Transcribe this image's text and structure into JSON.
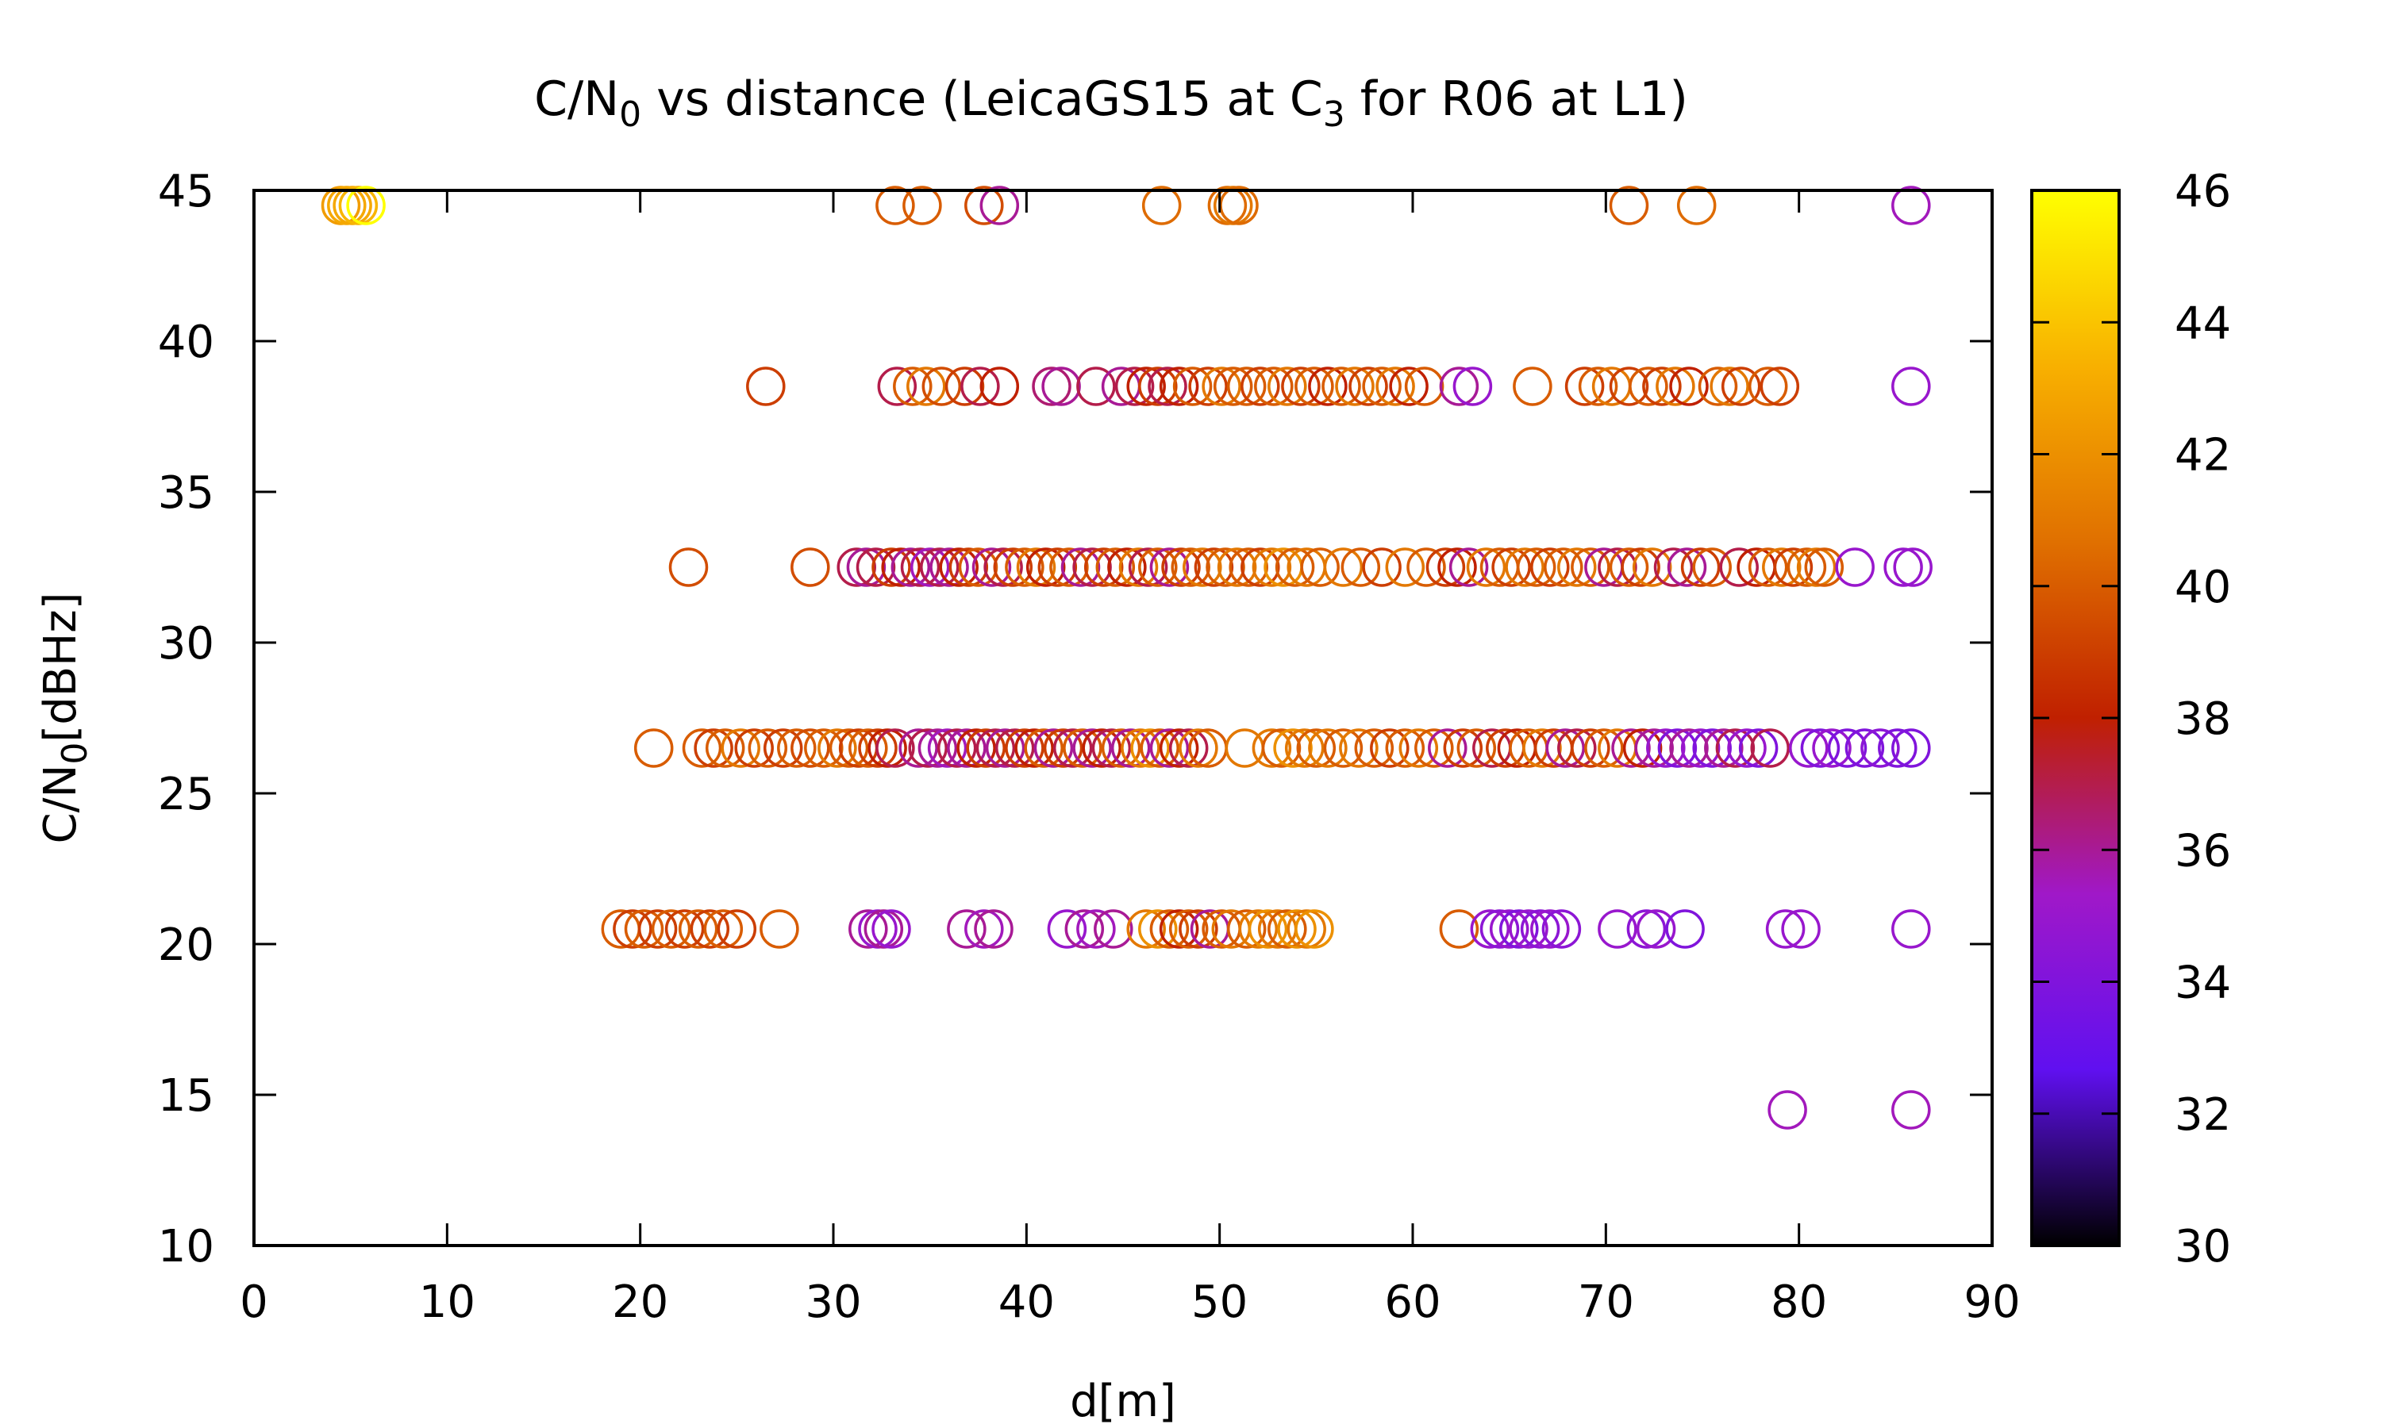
{
  "chart_data": {
    "type": "scatter",
    "title_parts": {
      "prefix": "C/N",
      "sub1": "0",
      "middle": " vs distance (LeicaGS15 at C",
      "sub2": "3",
      "suffix": " for R06 at L1)"
    },
    "xlabel": "d[m]",
    "ylabel_parts": {
      "prefix": "C/N",
      "sub": "0",
      "suffix": "[dBHz]"
    },
    "xlim": [
      0,
      90
    ],
    "ylim": [
      10,
      45
    ],
    "xticks": [
      0,
      10,
      20,
      30,
      40,
      50,
      60,
      70,
      80,
      90
    ],
    "yticks": [
      10,
      15,
      20,
      25,
      30,
      35,
      40,
      45
    ],
    "colorbar": {
      "range": [
        30,
        46
      ],
      "ticks": [
        30,
        32,
        34,
        36,
        38,
        40,
        42,
        44,
        46
      ],
      "palette": [
        "#000000",
        "#6010f0",
        "#a018c8",
        "#c02000",
        "#e07000",
        "#f8b000",
        "#ffff00"
      ]
    },
    "marker": "open-circle",
    "point_rows": [
      {
        "y": 44.5,
        "points": [
          [
            4.5,
            42.5
          ],
          [
            4.8,
            43
          ],
          [
            5.1,
            43
          ],
          [
            5.4,
            43.5
          ],
          [
            5.8,
            46
          ],
          [
            33.2,
            40
          ],
          [
            34.6,
            40
          ],
          [
            37.8,
            39.5
          ],
          [
            38.6,
            36
          ],
          [
            47,
            40.5
          ],
          [
            50.4,
            40.5
          ],
          [
            50.7,
            41
          ],
          [
            51,
            40.5
          ],
          [
            71.2,
            40
          ],
          [
            74.7,
            40.5
          ],
          [
            85.8,
            35.5
          ]
        ]
      },
      {
        "y": 38.5,
        "points": [
          [
            26.5,
            39
          ],
          [
            33.3,
            37
          ],
          [
            34.1,
            40
          ],
          [
            34.8,
            41
          ],
          [
            35.6,
            39.5
          ],
          [
            36.8,
            39
          ],
          [
            37.6,
            37
          ],
          [
            38.6,
            38
          ],
          [
            41.3,
            36.5
          ],
          [
            41.8,
            36
          ],
          [
            43.6,
            37
          ],
          [
            44.9,
            36
          ],
          [
            45.6,
            37
          ],
          [
            46.2,
            38
          ],
          [
            46.8,
            39
          ],
          [
            47.3,
            37
          ],
          [
            47.9,
            38
          ],
          [
            48.6,
            40
          ],
          [
            49.4,
            39
          ],
          [
            50.1,
            41
          ],
          [
            50.7,
            40
          ],
          [
            51.4,
            40
          ],
          [
            52.1,
            39
          ],
          [
            52.8,
            40
          ],
          [
            53.5,
            41
          ],
          [
            54.2,
            39
          ],
          [
            54.9,
            40
          ],
          [
            55.6,
            38
          ],
          [
            56.3,
            40
          ],
          [
            57,
            41
          ],
          [
            57.7,
            39
          ],
          [
            58.4,
            40
          ],
          [
            59.1,
            41
          ],
          [
            59.8,
            38
          ],
          [
            60.6,
            40
          ],
          [
            62.4,
            36
          ],
          [
            63.1,
            35
          ],
          [
            66.2,
            40
          ],
          [
            68.9,
            39
          ],
          [
            69.6,
            40
          ],
          [
            70.3,
            41
          ],
          [
            71.2,
            39
          ],
          [
            72.2,
            40
          ],
          [
            72.9,
            39
          ],
          [
            73.6,
            41
          ],
          [
            74.3,
            38
          ],
          [
            75.8,
            40
          ],
          [
            76.4,
            41
          ],
          [
            77,
            39
          ],
          [
            78.4,
            40
          ],
          [
            79,
            39
          ],
          [
            85.8,
            35
          ]
        ]
      },
      {
        "y": 32.5,
        "points": [
          [
            22.5,
            39.5
          ],
          [
            28.8,
            39.5
          ],
          [
            31.2,
            37
          ],
          [
            31.7,
            36
          ],
          [
            32.2,
            37
          ],
          [
            33,
            39
          ],
          [
            33.5,
            38
          ],
          [
            34,
            36
          ],
          [
            34.5,
            37
          ],
          [
            35,
            35.5
          ],
          [
            35.5,
            37
          ],
          [
            36,
            36
          ],
          [
            36.5,
            38
          ],
          [
            37,
            39
          ],
          [
            37.5,
            40
          ],
          [
            38.2,
            36
          ],
          [
            38.8,
            37
          ],
          [
            39.3,
            39
          ],
          [
            39.9,
            40
          ],
          [
            40.5,
            41
          ],
          [
            41,
            38
          ],
          [
            41.6,
            39
          ],
          [
            42.2,
            40
          ],
          [
            42.8,
            36
          ],
          [
            43.4,
            37
          ],
          [
            44,
            39
          ],
          [
            44.6,
            40
          ],
          [
            45.2,
            38
          ],
          [
            45.8,
            41
          ],
          [
            46.3,
            37
          ],
          [
            46.8,
            40
          ],
          [
            47.4,
            36
          ],
          [
            48,
            39
          ],
          [
            48.5,
            40
          ],
          [
            49.1,
            41
          ],
          [
            49.7,
            39
          ],
          [
            50.3,
            40
          ],
          [
            50.9,
            41
          ],
          [
            51.5,
            40
          ],
          [
            52.1,
            39
          ],
          [
            52.7,
            41
          ],
          [
            53.3,
            42
          ],
          [
            53.9,
            40
          ],
          [
            54.5,
            41
          ],
          [
            55.2,
            40
          ],
          [
            56.4,
            41
          ],
          [
            57.3,
            40
          ],
          [
            58.4,
            39
          ],
          [
            59.6,
            41
          ],
          [
            60.7,
            40
          ],
          [
            61.7,
            39
          ],
          [
            62.3,
            38
          ],
          [
            62.9,
            36
          ],
          [
            63.8,
            41
          ],
          [
            64.5,
            40
          ],
          [
            65.1,
            39
          ],
          [
            65.8,
            41
          ],
          [
            66.4,
            40
          ],
          [
            67.1,
            39
          ],
          [
            67.8,
            40
          ],
          [
            68.5,
            41
          ],
          [
            69.2,
            40
          ],
          [
            69.9,
            36
          ],
          [
            70.6,
            37
          ],
          [
            71.2,
            40
          ],
          [
            71.8,
            39
          ],
          [
            72.4,
            41
          ],
          [
            73.5,
            37
          ],
          [
            74.2,
            36
          ],
          [
            74.9,
            39
          ],
          [
            75.5,
            40
          ],
          [
            76.9,
            37
          ],
          [
            77.8,
            38
          ],
          [
            78.4,
            40
          ],
          [
            79.1,
            41
          ],
          [
            79.7,
            39
          ],
          [
            80.4,
            40
          ],
          [
            80.9,
            41
          ],
          [
            81.3,
            40
          ],
          [
            82.9,
            35
          ],
          [
            85.4,
            35
          ],
          [
            85.9,
            35
          ]
        ]
      },
      {
        "y": 26.5,
        "points": [
          [
            20.7,
            40
          ],
          [
            23.2,
            40
          ],
          [
            23.8,
            39
          ],
          [
            24.4,
            40
          ],
          [
            25.2,
            41
          ],
          [
            25.9,
            39
          ],
          [
            26.6,
            40
          ],
          [
            27.4,
            39
          ],
          [
            28.1,
            40
          ],
          [
            28.8,
            39.5
          ],
          [
            29.5,
            40
          ],
          [
            30.2,
            41
          ],
          [
            30.8,
            40
          ],
          [
            31.3,
            39
          ],
          [
            31.8,
            40
          ],
          [
            32.3,
            39
          ],
          [
            32.8,
            38
          ],
          [
            33.2,
            37
          ],
          [
            34.4,
            36
          ],
          [
            34.9,
            37
          ],
          [
            35.4,
            36
          ],
          [
            35.9,
            35.5
          ],
          [
            36.4,
            37
          ],
          [
            36.9,
            36
          ],
          [
            37.4,
            38
          ],
          [
            37.9,
            39
          ],
          [
            38.4,
            37
          ],
          [
            38.9,
            36
          ],
          [
            39.4,
            37
          ],
          [
            39.9,
            39
          ],
          [
            40.4,
            38
          ],
          [
            40.9,
            40
          ],
          [
            41.4,
            36
          ],
          [
            41.9,
            39
          ],
          [
            42.4,
            37
          ],
          [
            42.9,
            40
          ],
          [
            43.4,
            36
          ],
          [
            43.9,
            38
          ],
          [
            44.4,
            37
          ],
          [
            44.9,
            40
          ],
          [
            45.4,
            36
          ],
          [
            45.9,
            41
          ],
          [
            46.4,
            42
          ],
          [
            46.9,
            40
          ],
          [
            47.4,
            36
          ],
          [
            47.9,
            38
          ],
          [
            48.4,
            37
          ],
          [
            48.9,
            41
          ],
          [
            49.4,
            40
          ],
          [
            51.3,
            41
          ],
          [
            52.7,
            41
          ],
          [
            53.2,
            40
          ],
          [
            53.8,
            42
          ],
          [
            54.4,
            41
          ],
          [
            55,
            40
          ],
          [
            55.6,
            41
          ],
          [
            56.4,
            40
          ],
          [
            57.2,
            41
          ],
          [
            58,
            40
          ],
          [
            58.8,
            39
          ],
          [
            59.6,
            40
          ],
          [
            60.3,
            41
          ],
          [
            61.1,
            40
          ],
          [
            61.8,
            36
          ],
          [
            62.6,
            39
          ],
          [
            63.3,
            40
          ],
          [
            64.1,
            37
          ],
          [
            64.8,
            39
          ],
          [
            65.4,
            38
          ],
          [
            66,
            40
          ],
          [
            66.7,
            41
          ],
          [
            67.3,
            39
          ],
          [
            67.9,
            36
          ],
          [
            68.5,
            37
          ],
          [
            69.2,
            39
          ],
          [
            69.9,
            40
          ],
          [
            70.6,
            41
          ],
          [
            71.3,
            36
          ],
          [
            71.9,
            38
          ],
          [
            72.5,
            36
          ],
          [
            73.1,
            35
          ],
          [
            73.7,
            34
          ],
          [
            74.3,
            36
          ],
          [
            74.9,
            35
          ],
          [
            75.5,
            34
          ],
          [
            76.1,
            36
          ],
          [
            76.7,
            37
          ],
          [
            77.3,
            35
          ],
          [
            77.9,
            34
          ],
          [
            78.5,
            37
          ],
          [
            80.5,
            35
          ],
          [
            81.1,
            34
          ],
          [
            81.7,
            35
          ],
          [
            82.5,
            34
          ],
          [
            83.4,
            34
          ],
          [
            84.2,
            34.5
          ],
          [
            85.1,
            34
          ],
          [
            85.8,
            34
          ]
        ]
      },
      {
        "y": 20.5,
        "points": [
          [
            19,
            40
          ],
          [
            19.6,
            39
          ],
          [
            20.2,
            40
          ],
          [
            20.9,
            39
          ],
          [
            21.6,
            40
          ],
          [
            22.3,
            39
          ],
          [
            23,
            40
          ],
          [
            23.6,
            39
          ],
          [
            24.3,
            40
          ],
          [
            25,
            39
          ],
          [
            27.2,
            40
          ],
          [
            31.8,
            36
          ],
          [
            32.3,
            35
          ],
          [
            32.6,
            36
          ],
          [
            33,
            35
          ],
          [
            36.9,
            36
          ],
          [
            37.8,
            35.5
          ],
          [
            38.3,
            36
          ],
          [
            42.1,
            35
          ],
          [
            43,
            36
          ],
          [
            43.6,
            35.5
          ],
          [
            44.5,
            36
          ],
          [
            46.2,
            41
          ],
          [
            46.8,
            42
          ],
          [
            47.4,
            40
          ],
          [
            47.9,
            38
          ],
          [
            48.4,
            40
          ],
          [
            48.9,
            39
          ],
          [
            49.5,
            36
          ],
          [
            50.1,
            40
          ],
          [
            50.6,
            41
          ],
          [
            51.4,
            40
          ],
          [
            52,
            41
          ],
          [
            52.5,
            42
          ],
          [
            53,
            41
          ],
          [
            53.5,
            40
          ],
          [
            54,
            42
          ],
          [
            54.5,
            41
          ],
          [
            54.9,
            42
          ],
          [
            62.4,
            40
          ],
          [
            64,
            35
          ],
          [
            64.5,
            34.5
          ],
          [
            65,
            35
          ],
          [
            65.5,
            34
          ],
          [
            66,
            35
          ],
          [
            66.6,
            34.5
          ],
          [
            67.1,
            35
          ],
          [
            67.7,
            34.5
          ],
          [
            70.6,
            35
          ],
          [
            72.1,
            34.5
          ],
          [
            72.6,
            35
          ],
          [
            74.1,
            34
          ],
          [
            79.3,
            35
          ],
          [
            80.1,
            35
          ],
          [
            85.8,
            35
          ]
        ]
      },
      {
        "y": 14.5,
        "points": [
          [
            79.4,
            35.5
          ],
          [
            85.8,
            35.5
          ]
        ]
      }
    ]
  }
}
